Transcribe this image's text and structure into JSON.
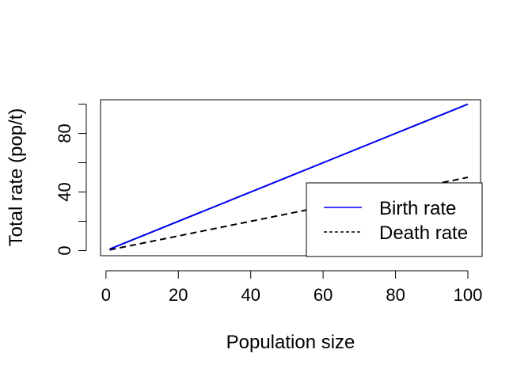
{
  "chart_data": {
    "type": "line",
    "title": "",
    "xlabel": "Population size",
    "ylabel": "Total rate (pop/t)",
    "xlim": [
      -1.5,
      103.5
    ],
    "ylim": [
      -3.5,
      103
    ],
    "x_ticks": [
      0,
      20,
      40,
      60,
      80,
      100
    ],
    "x_tick_labels": [
      "0",
      "20",
      "40",
      "60",
      "80",
      "100"
    ],
    "y_ticks": [
      0,
      20,
      40,
      60,
      80,
      100
    ],
    "y_tick_labels": [
      "0",
      "",
      "40",
      "",
      "80",
      ""
    ],
    "grid": false,
    "legend_position": "bottom-right",
    "series": [
      {
        "name": "Birth rate",
        "color": "#0000ee",
        "dash": "solid",
        "x": [
          1,
          100
        ],
        "y": [
          1,
          100
        ]
      },
      {
        "name": "Death rate",
        "color": "#000000",
        "dash": "dashed",
        "x": [
          1,
          100
        ],
        "y": [
          0.5,
          50
        ]
      }
    ]
  }
}
